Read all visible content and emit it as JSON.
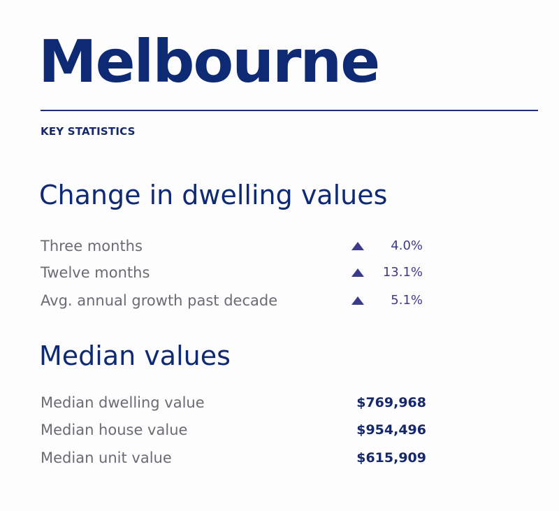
{
  "header": {
    "city": "Melbourne",
    "eyebrow": "KEY STATISTICS"
  },
  "colors": {
    "title": "#0f2a74",
    "label": "#6b6b73",
    "accent": "#3e3a8a"
  },
  "change": {
    "heading": "Change in dwelling values",
    "rows": [
      {
        "label": "Three months",
        "value": "4.0%",
        "direction_icon": "up-triangle-icon"
      },
      {
        "label": "Twelve months",
        "value": "13.1%",
        "direction_icon": "up-triangle-icon"
      },
      {
        "label": "Avg. annual growth past decade",
        "value": "5.1%",
        "direction_icon": "up-triangle-icon"
      }
    ]
  },
  "median": {
    "heading": "Median values",
    "rows": [
      {
        "label": "Median dwelling value",
        "value": "$769,968"
      },
      {
        "label": "Median house value",
        "value": "$954,496"
      },
      {
        "label": "Median unit value",
        "value": "$615,909"
      }
    ]
  }
}
